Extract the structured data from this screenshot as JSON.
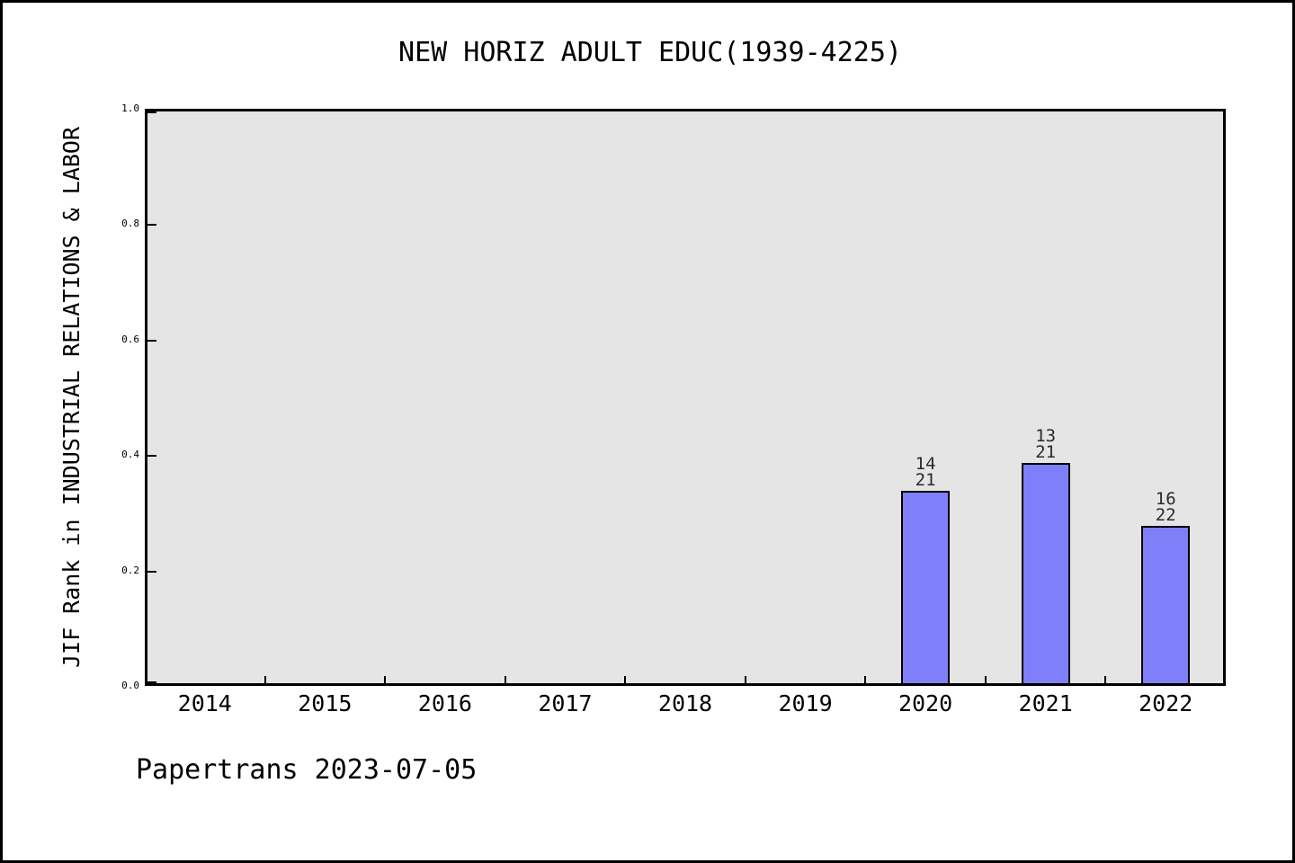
{
  "header": {
    "title": "NEW HORIZ ADULT EDUC(1939-4225)"
  },
  "footer": {
    "text": "Papertrans 2023-07-05"
  },
  "chart_data": {
    "type": "bar",
    "title": "NEW HORIZ ADULT EDUC(1939-4225)",
    "xlabel": "",
    "ylabel": "JIF Rank in INDUSTRIAL RELATIONS & LABOR",
    "categories": [
      "2014",
      "2015",
      "2016",
      "2017",
      "2018",
      "2019",
      "2020",
      "2021",
      "2022"
    ],
    "values": [
      null,
      null,
      null,
      null,
      null,
      null,
      0.3333,
      0.381,
      0.2727
    ],
    "bars": [
      {
        "category": "2020",
        "rank": 14,
        "total": 21,
        "value": 0.3333,
        "label_lines": [
          "14",
          "21"
        ]
      },
      {
        "category": "2021",
        "rank": 13,
        "total": 21,
        "value": 0.381,
        "label_lines": [
          "13",
          "21"
        ]
      },
      {
        "category": "2022",
        "rank": 16,
        "total": 22,
        "value": 0.2727,
        "label_lines": [
          "16",
          "22"
        ]
      }
    ],
    "ylim": [
      0.0,
      1.0
    ],
    "yticks": [
      "0.0",
      "0.2",
      "0.4",
      "0.6",
      "0.8",
      "1.0"
    ],
    "grid": false,
    "legend": null,
    "colors": {
      "bar_fill": "#7f7ffa",
      "bar_edge": "#000000",
      "plot_bg": "#e5e5e5",
      "page_bg": "#ffffff",
      "text": "#000000"
    }
  }
}
